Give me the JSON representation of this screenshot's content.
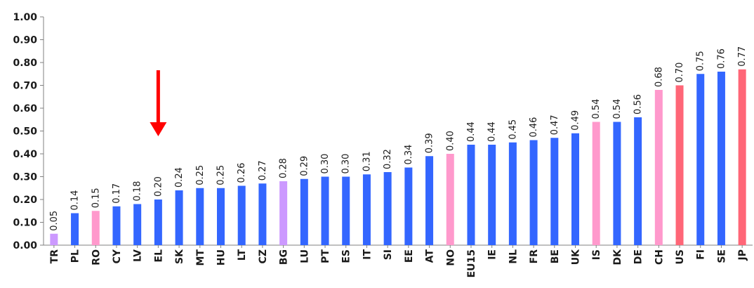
{
  "chart_data": {
    "type": "bar",
    "title": "",
    "xlabel": "",
    "ylabel": "",
    "ylim": [
      0,
      1.0
    ],
    "yticks": [
      "0.00",
      "0.10",
      "0.20",
      "0.30",
      "0.40",
      "0.50",
      "0.60",
      "0.70",
      "0.80",
      "0.90",
      "1.00"
    ],
    "categories": [
      "TR",
      "PL",
      "RO",
      "CY",
      "LV",
      "EL",
      "SK",
      "MT",
      "HU",
      "LT",
      "CZ",
      "BG",
      "LU",
      "PT",
      "ES",
      "IT",
      "SI",
      "EE",
      "AT",
      "NO",
      "EU15",
      "IE",
      "NL",
      "FR",
      "BE",
      "UK",
      "IS",
      "DK",
      "DE",
      "CH",
      "US",
      "FI",
      "SE",
      "JP"
    ],
    "values": [
      0.05,
      0.14,
      0.15,
      0.17,
      0.18,
      0.2,
      0.24,
      0.25,
      0.25,
      0.26,
      0.27,
      0.28,
      0.29,
      0.3,
      0.3,
      0.31,
      0.32,
      0.34,
      0.39,
      0.4,
      0.44,
      0.44,
      0.45,
      0.46,
      0.47,
      0.49,
      0.54,
      0.54,
      0.56,
      0.68,
      0.7,
      0.75,
      0.76,
      0.77
    ],
    "labels": [
      "0.05",
      "0.14",
      "0.15",
      "0.17",
      "0.18",
      "0.20",
      "0.24",
      "0.25",
      "0.25",
      "0.26",
      "0.27",
      "0.28",
      "0.29",
      "0.30",
      "0.30",
      "0.31",
      "0.32",
      "0.34",
      "0.39",
      "0.40",
      "0.44",
      "0.44",
      "0.45",
      "0.46",
      "0.47",
      "0.49",
      "0.54",
      "0.54",
      "0.56",
      "0.68",
      "0.70",
      "0.75",
      "0.76",
      "0.77"
    ],
    "bar_colors": [
      "#cc99ff",
      "#3366ff",
      "#ff99cc",
      "#3366ff",
      "#3366ff",
      "#3366ff",
      "#3366ff",
      "#3366ff",
      "#3366ff",
      "#3366ff",
      "#3366ff",
      "#cc99ff",
      "#3366ff",
      "#3366ff",
      "#3366ff",
      "#3366ff",
      "#3366ff",
      "#3366ff",
      "#3366ff",
      "#ff99cc",
      "#3366ff",
      "#3366ff",
      "#3366ff",
      "#3366ff",
      "#3366ff",
      "#3366ff",
      "#ff99cc",
      "#3366ff",
      "#3366ff",
      "#ff99cc",
      "#ff6677",
      "#3366ff",
      "#3366ff",
      "#ff6677"
    ],
    "highlight_category": "EL",
    "highlight_color": "#ff0000",
    "axis_color": "#808080",
    "grid": false,
    "legend": "none"
  }
}
